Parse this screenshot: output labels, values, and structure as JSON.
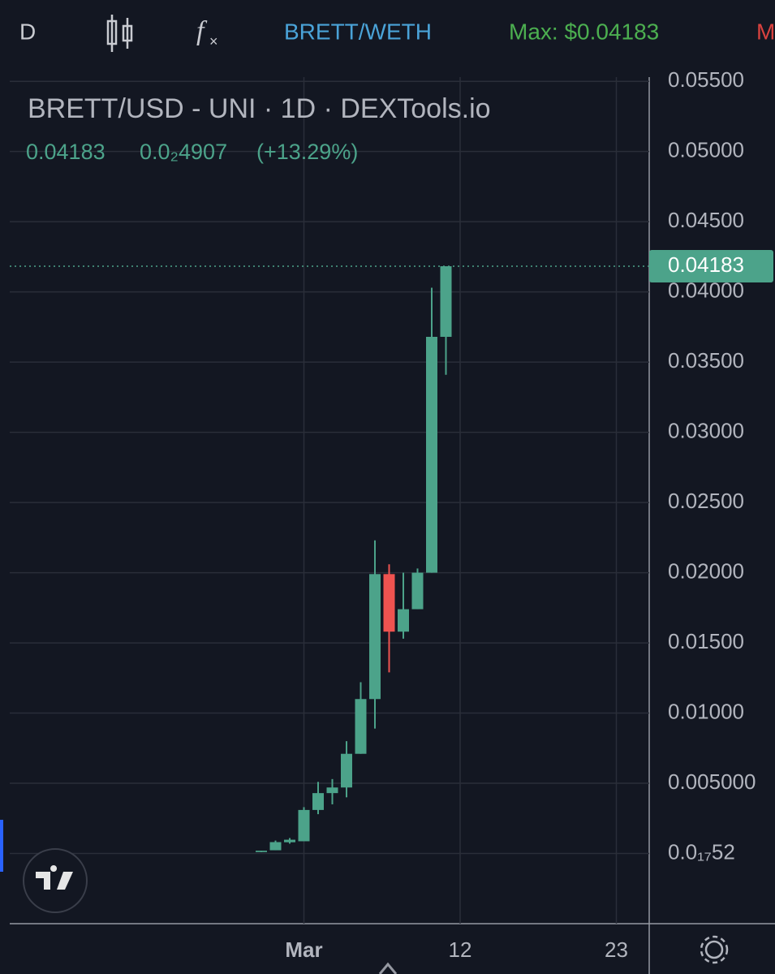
{
  "toolbar": {
    "interval": "D",
    "pair": "BRETT/WETH",
    "max": "Max: $0.04183",
    "cut": "M"
  },
  "chart_data": {
    "type": "candlestick",
    "title": "BRETT/USD - UNI · 1D · DEXTools.io",
    "change": "0.0₂4907",
    "change_pct": "(+13.29%)",
    "up_color": "#4ca38a",
    "down_color": "#ef5350",
    "grid": true,
    "categories": [
      null,
      null,
      null,
      "Mar",
      null,
      null,
      null,
      null,
      null,
      null,
      null,
      null,
      null,
      null,
      "12",
      null,
      null,
      null,
      null,
      null,
      null,
      null,
      null,
      null,
      null,
      "23"
    ],
    "open": [
      0.0001,
      0.00023,
      0.0008,
      0.00087,
      0.0031,
      0.0043,
      0.0047,
      0.0071,
      0.011,
      0.0199,
      0.0158,
      0.0174,
      0.02,
      0.0368,
      null,
      null,
      null,
      null,
      null,
      null,
      null,
      null,
      null,
      null,
      null,
      null
    ],
    "high": [
      0.0002,
      0.00092,
      0.0011,
      0.0033,
      0.0051,
      0.0053,
      0.008,
      0.0122,
      0.0223,
      0.0206,
      0.02,
      0.0203,
      0.0403,
      0.04183,
      null,
      null,
      null,
      null,
      null,
      null,
      null,
      null,
      null,
      null,
      null,
      null
    ],
    "low": [
      0.0001,
      0.00023,
      0.0007,
      0.00087,
      0.0028,
      0.0035,
      0.004,
      0.0071,
      0.0089,
      0.0129,
      0.0153,
      0.0174,
      0.02,
      0.0341,
      null,
      null,
      null,
      null,
      null,
      null,
      null,
      null,
      null,
      null,
      null,
      null
    ],
    "close": [
      0.0002,
      0.00081,
      0.00098,
      0.0031,
      0.0043,
      0.0047,
      0.0071,
      0.011,
      0.0199,
      0.0158,
      0.0174,
      0.02,
      0.0368,
      0.04183,
      null,
      null,
      null,
      null,
      null,
      null,
      null,
      null,
      null,
      null,
      null,
      null
    ],
    "ylim": [
      -0.005,
      0.0553
    ],
    "yticks": [
      {
        "value": 0.055,
        "label": "0.05500"
      },
      {
        "value": 0.05,
        "label": "0.05000"
      },
      {
        "value": 0.045,
        "label": "0.04500"
      },
      {
        "value": 0.04,
        "label": "0.04000"
      },
      {
        "value": 0.035,
        "label": "0.03500"
      },
      {
        "value": 0.03,
        "label": "0.03000"
      },
      {
        "value": 0.025,
        "label": "0.02500"
      },
      {
        "value": 0.02,
        "label": "0.02000"
      },
      {
        "value": 0.015,
        "label": "0.01500"
      },
      {
        "value": 0.01,
        "label": "0.01000"
      },
      {
        "value": 0.005,
        "label": "0.005000"
      },
      {
        "value": 5.2e-18,
        "label": "0.0₁₇52"
      }
    ]
  }
}
